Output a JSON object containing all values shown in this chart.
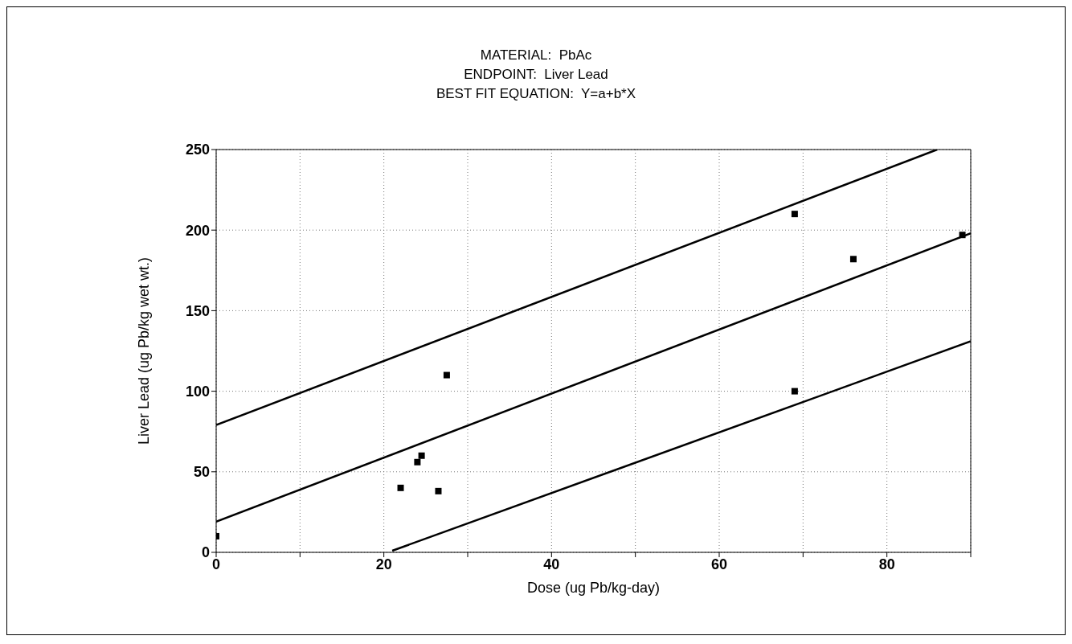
{
  "chart_data": {
    "type": "scatter",
    "title": "MATERIAL:  PbAc\nENDPOINT:  Liver Lead\nBEST FIT EQUATION:  Y=a+b*X",
    "xlabel": "Dose (ug Pb/kg-day)",
    "ylabel": "Liver Lead (ug Pb/kg wet wt.)",
    "x": [
      0,
      22,
      24,
      24.5,
      26.5,
      27.5,
      69,
      69,
      76,
      89
    ],
    "series": [
      {
        "color": "#000000",
        "marker": "square",
        "values": [
          10,
          40,
          56,
          60,
          38,
          110,
          210,
          100,
          182,
          197
        ]
      },
      {
        "type": "line",
        "color": "#000000",
        "marker": "none",
        "line_style": "solid",
        "x": [
          0,
          90
        ],
        "values": [
          19,
          198
        ]
      },
      {
        "type": "line",
        "color": "#000000",
        "marker": "none",
        "line_style": "solid",
        "x": [
          0,
          86
        ],
        "values": [
          79,
          250
        ]
      },
      {
        "type": "line",
        "color": "#000000",
        "marker": "none",
        "line_style": "solid",
        "x": [
          21,
          90
        ],
        "values": [
          1,
          131
        ]
      }
    ],
    "xlim": [
      0,
      90
    ],
    "xticks": [
      0,
      {
        "value": 10,
        "label": null
      },
      20,
      {
        "value": 30,
        "label": null
      },
      40,
      {
        "value": 50,
        "label": null
      },
      60,
      {
        "value": 70,
        "label": null
      },
      80,
      {
        "value": 90,
        "label": null
      }
    ],
    "ylim": [
      0,
      250
    ],
    "yticks": [
      0,
      50,
      100,
      150,
      200,
      250
    ],
    "grid": true
  }
}
